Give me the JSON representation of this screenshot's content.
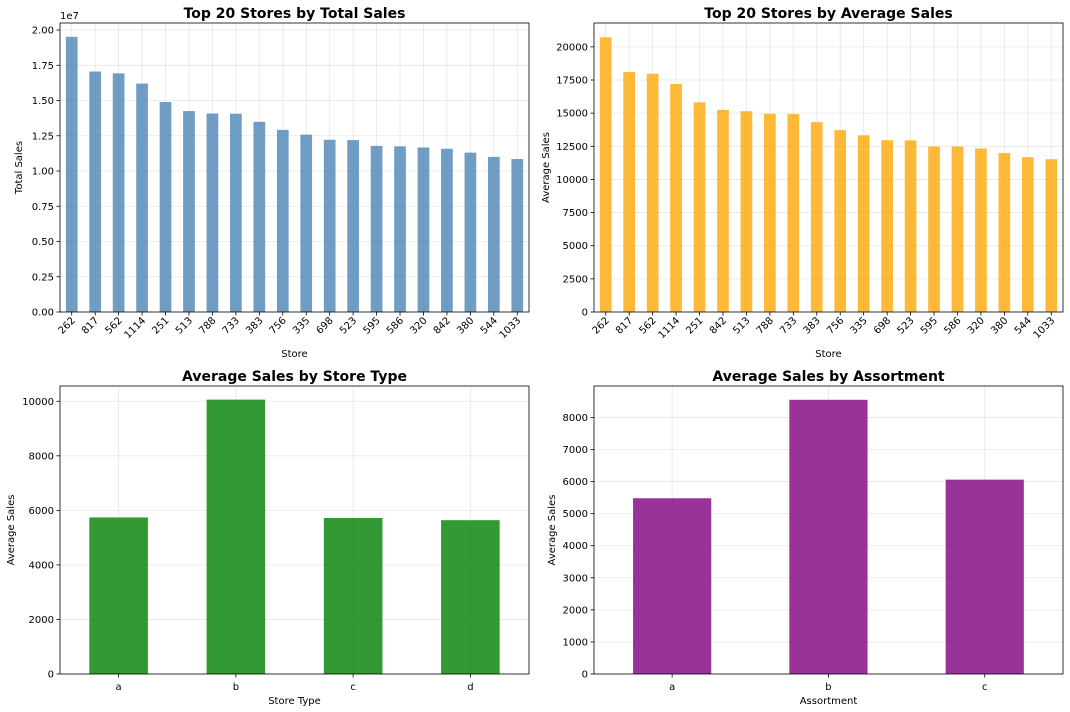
{
  "chart_data": [
    {
      "type": "bar",
      "title": "Top 20 Stores by Total Sales",
      "xlabel": "Store",
      "ylabel": "Total Sales",
      "axis_offset_label": "1e7",
      "categories": [
        "262",
        "817",
        "562",
        "1114",
        "251",
        "513",
        "788",
        "733",
        "383",
        "756",
        "335",
        "698",
        "523",
        "595",
        "586",
        "320",
        "842",
        "380",
        "544",
        "1033"
      ],
      "values": [
        19516842,
        17057867,
        16927322,
        16202585,
        14896870,
        14252406,
        14082141,
        14067158,
        13489879,
        12918850,
        12580045,
        12218430,
        12195690,
        11780960,
        11753970,
        11669570,
        11575730,
        11303560,
        11004310,
        10851100
      ],
      "ylim": [
        0,
        20500000
      ],
      "yticks": [
        0,
        2500000,
        5000000,
        7500000,
        10000000,
        12500000,
        15000000,
        17500000,
        20000000
      ],
      "ytick_labels": [
        "0.00",
        "0.25",
        "0.50",
        "0.75",
        "1.00",
        "1.25",
        "1.50",
        "1.75",
        "2.00"
      ],
      "xtick_rotation": 45,
      "grid": true,
      "color": "#4682b4"
    },
    {
      "type": "bar",
      "title": "Top 20 Stores by Average Sales",
      "xlabel": "Store",
      "ylabel": "Average Sales",
      "categories": [
        "262",
        "817",
        "562",
        "1114",
        "251",
        "842",
        "513",
        "788",
        "733",
        "383",
        "756",
        "335",
        "698",
        "523",
        "595",
        "586",
        "320",
        "380",
        "544",
        "1033"
      ],
      "values": [
        20720,
        18110,
        17970,
        17200,
        15820,
        15250,
        15150,
        14950,
        14930,
        14320,
        13720,
        13330,
        12960,
        12950,
        12480,
        12480,
        12340,
        12000,
        11680,
        11530
      ],
      "ylim": [
        0,
        21800
      ],
      "yticks": [
        0,
        2500,
        5000,
        7500,
        10000,
        12500,
        15000,
        17500,
        20000
      ],
      "ytick_labels": [
        "0",
        "2500",
        "5000",
        "7500",
        "10000",
        "12500",
        "15000",
        "17500",
        "20000"
      ],
      "xtick_rotation": 45,
      "grid": true,
      "color": "#ffa500"
    },
    {
      "type": "bar",
      "title": "Average Sales by Store Type",
      "xlabel": "Store Type",
      "ylabel": "Average Sales",
      "categories": [
        "a",
        "b",
        "c",
        "d"
      ],
      "values": [
        5740,
        10060,
        5720,
        5640
      ],
      "ylim": [
        0,
        10560
      ],
      "yticks": [
        0,
        2000,
        4000,
        6000,
        8000,
        10000
      ],
      "ytick_labels": [
        "0",
        "2000",
        "4000",
        "6000",
        "8000",
        "10000"
      ],
      "xtick_rotation": 0,
      "grid": true,
      "color": "#008000"
    },
    {
      "type": "bar",
      "title": "Average Sales by Assortment",
      "xlabel": "Assortment",
      "ylabel": "Average Sales",
      "categories": [
        "a",
        "b",
        "c"
      ],
      "values": [
        5480,
        8550,
        6060
      ],
      "ylim": [
        0,
        8980
      ],
      "yticks": [
        0,
        1000,
        2000,
        3000,
        4000,
        5000,
        6000,
        7000,
        8000
      ],
      "ytick_labels": [
        "0",
        "1000",
        "2000",
        "3000",
        "4000",
        "5000",
        "6000",
        "7000",
        "8000"
      ],
      "xtick_rotation": 0,
      "grid": true,
      "color": "#800080"
    }
  ]
}
